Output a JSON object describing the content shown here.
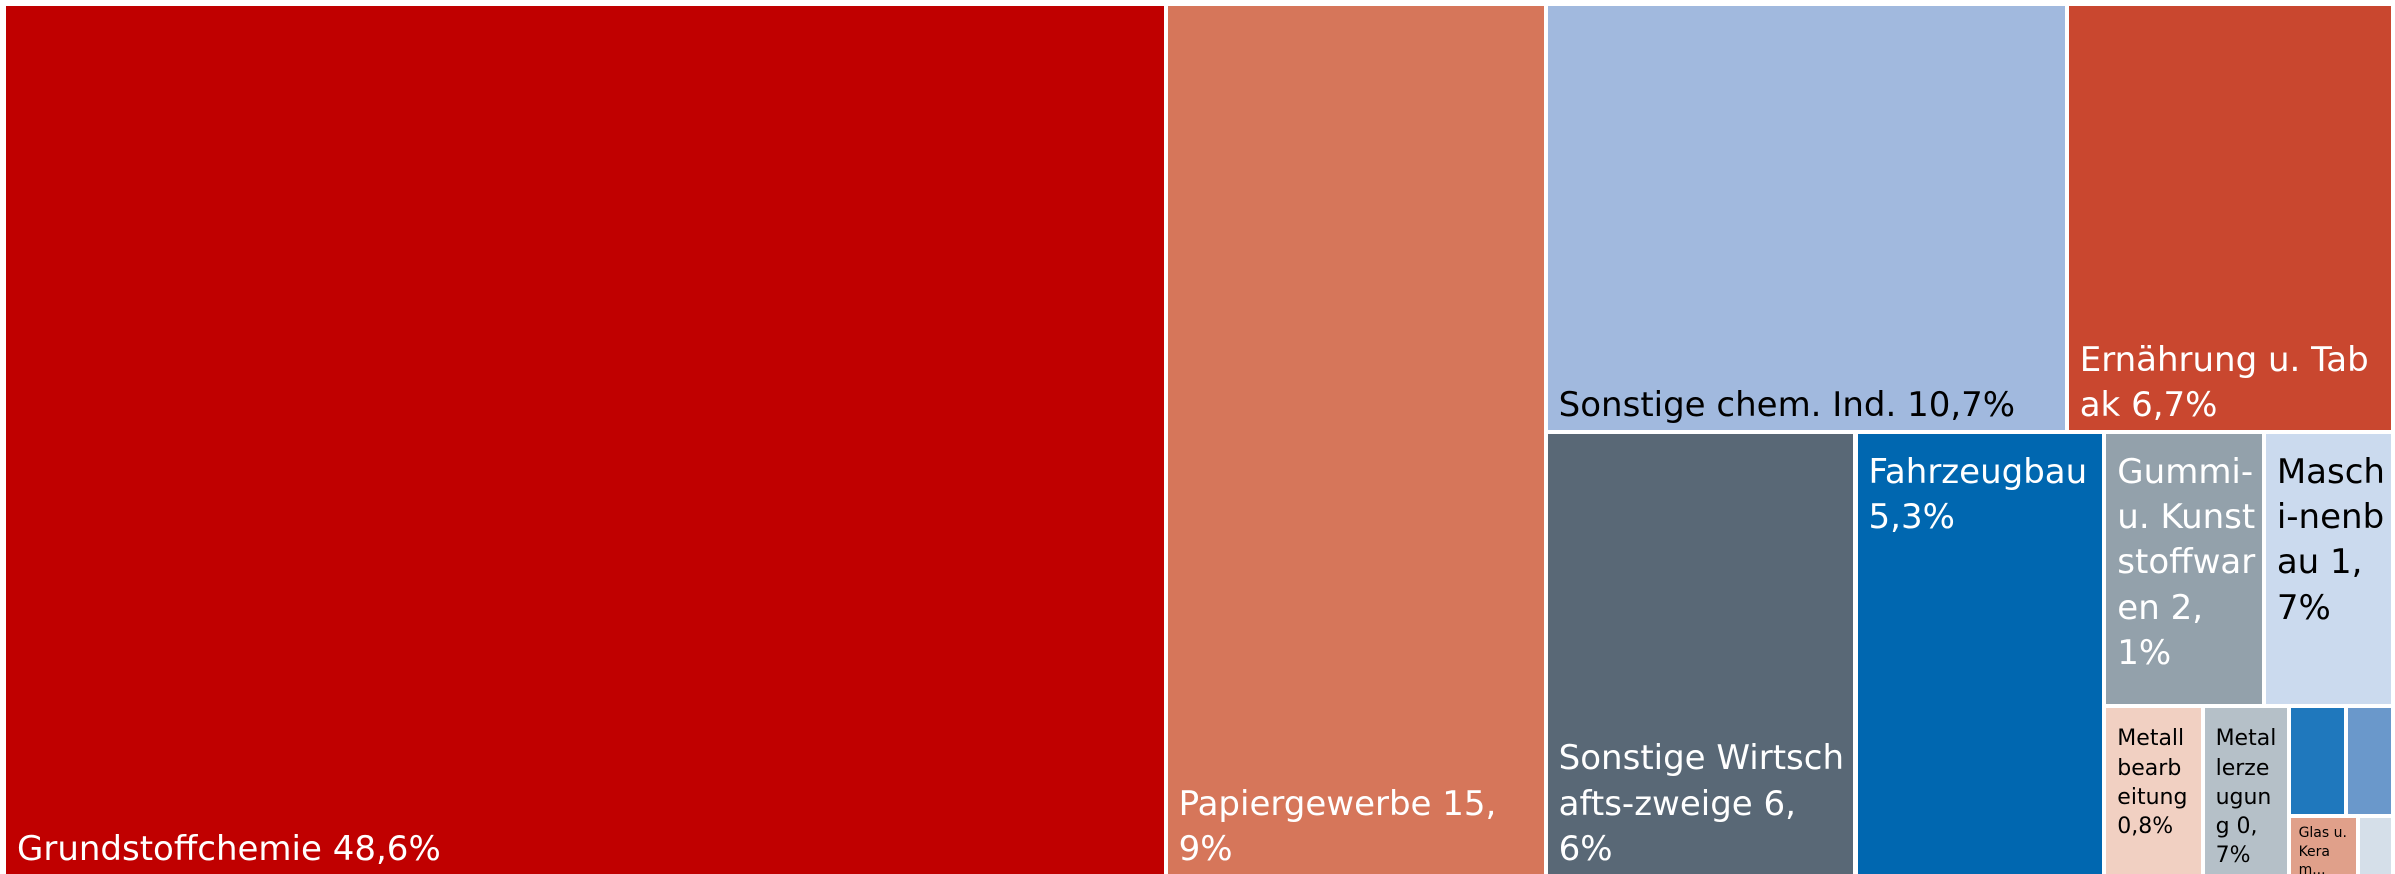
{
  "chart_data": {
    "type": "treemap",
    "categories": [
      "Grundstoffchemie",
      "Papiergewerbe",
      "Sonstige chem. Ind.",
      "Ernährung u. Tabak",
      "Sonstige Wirtschafts-zweige",
      "Fahrzeugbau",
      "Gummi-u. Kunststoffwaren",
      "Maschi-nenbau",
      "Metallbearbeitung",
      "Metallerzeugung",
      null,
      null,
      "Glas u. Keram...",
      null
    ],
    "values": [
      48.6,
      15.9,
      10.7,
      6.7,
      6.6,
      5.3,
      2.1,
      1.7,
      0.8,
      0.7,
      0.3,
      0.25,
      0.2,
      0.1
    ],
    "value_labels": [
      "48,6%",
      "15,9%",
      "10,7%",
      "6,7%",
      "6,6%",
      "5,3%",
      "2,1%",
      "1,7%",
      "0,8%",
      "0,7%",
      null,
      null,
      null,
      null
    ],
    "colors": [
      "#c00000",
      "#d6765a",
      "#a1b9de",
      "#c9472f",
      "#596876",
      "#0067b0",
      "#93a1ab",
      "#cbdaee",
      "#f1d0c2",
      "#b5c0c8",
      "#1f78bd",
      "#6a98cb",
      "#e0a08a",
      "#d5dfe9"
    ],
    "label_colors": [
      "#ffffff",
      "#ffffff",
      "#000000",
      "#ffffff",
      "#ffffff",
      "#ffffff",
      "#ffffff",
      "#000000",
      "#000000",
      "#000000",
      "#ffffff",
      "#ffffff",
      "#000000",
      "#000000"
    ]
  }
}
